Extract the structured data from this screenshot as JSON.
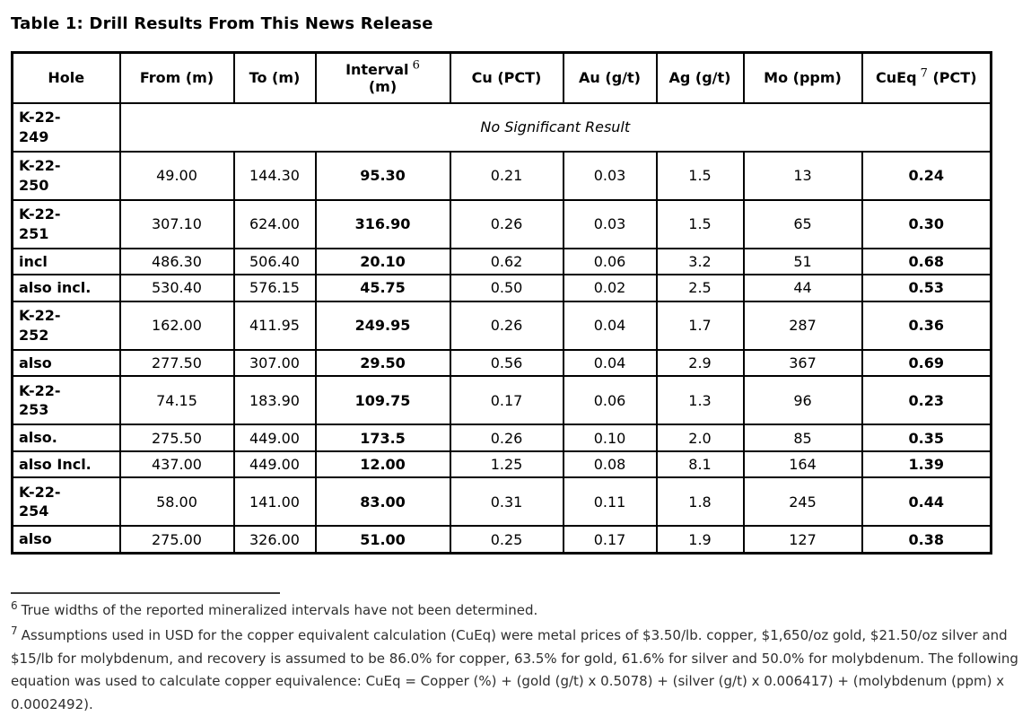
{
  "title": "Table 1: Drill Results From This News Release",
  "table": {
    "headers": [
      {
        "key": "hole",
        "label": "Hole"
      },
      {
        "key": "from",
        "label": "From (m)"
      },
      {
        "key": "to",
        "label": "To (m)"
      },
      {
        "key": "interval",
        "label": "Interval",
        "sup": "6",
        "line2": "(m)"
      },
      {
        "key": "cu",
        "label": "Cu (PCT)"
      },
      {
        "key": "au",
        "label": "Au (g/t)"
      },
      {
        "key": "ag",
        "label": "Ag (g/t)"
      },
      {
        "key": "mo",
        "label": "Mo (ppm)"
      },
      {
        "key": "cueq",
        "label": "CuEq",
        "sup": "7",
        "suffix": " (PCT)"
      }
    ],
    "rows": [
      {
        "hole": "K-22-\n249",
        "span_note": "No Significant Result",
        "size": "tall"
      },
      {
        "hole": "K-22-\n250",
        "from": "49.00",
        "to": "144.30",
        "interval": "95.30",
        "cu": "0.21",
        "au": "0.03",
        "ag": "1.5",
        "mo": "13",
        "cueq": "0.24",
        "size": "tall"
      },
      {
        "hole": "K-22-\n251",
        "from": "307.10",
        "to": "624.00",
        "interval": "316.90",
        "cu": "0.26",
        "au": "0.03",
        "ag": "1.5",
        "mo": "65",
        "cueq": "0.30",
        "size": "tall"
      },
      {
        "hole": "incl",
        "from": "486.30",
        "to": "506.40",
        "interval": "20.10",
        "cu": "0.62",
        "au": "0.06",
        "ag": "3.2",
        "mo": "51",
        "cueq": "0.68",
        "size": "short"
      },
      {
        "hole": "also incl.",
        "from": "530.40",
        "to": "576.15",
        "interval": "45.75",
        "cu": "0.50",
        "au": "0.02",
        "ag": "2.5",
        "mo": "44",
        "cueq": "0.53",
        "size": "short"
      },
      {
        "hole": "K-22-\n252",
        "from": "162.00",
        "to": "411.95",
        "interval": "249.95",
        "cu": "0.26",
        "au": "0.04",
        "ag": "1.7",
        "mo": "287",
        "cueq": "0.36",
        "size": "tall"
      },
      {
        "hole": "also",
        "from": "277.50",
        "to": "307.00",
        "interval": "29.50",
        "cu": "0.56",
        "au": "0.04",
        "ag": "2.9",
        "mo": "367",
        "cueq": "0.69",
        "size": "short"
      },
      {
        "hole": "K-22-\n253",
        "from": "74.15",
        "to": "183.90",
        "interval": "109.75",
        "cu": "0.17",
        "au": "0.06",
        "ag": "1.3",
        "mo": "96",
        "cueq": "0.23",
        "size": "tall"
      },
      {
        "hole": "also.",
        "from": "275.50",
        "to": "449.00",
        "interval": "173.5",
        "cu": "0.26",
        "au": "0.10",
        "ag": "2.0",
        "mo": "85",
        "cueq": "0.35",
        "size": "short"
      },
      {
        "hole": "also Incl.",
        "from": "437.00",
        "to": "449.00",
        "interval": "12.00",
        "cu": "1.25",
        "au": "0.08",
        "ag": "8.1",
        "mo": "164",
        "cueq": "1.39",
        "size": "short"
      },
      {
        "hole": "K-22-\n254",
        "from": "58.00",
        "to": "141.00",
        "interval": "83.00",
        "cu": "0.31",
        "au": "0.11",
        "ag": "1.8",
        "mo": "245",
        "cueq": "0.44",
        "size": "tall"
      },
      {
        "hole": "also",
        "from": "275.00",
        "to": "326.00",
        "interval": "51.00",
        "cu": "0.25",
        "au": "0.17",
        "ag": "1.9",
        "mo": "127",
        "cueq": "0.38",
        "size": "short"
      }
    ]
  },
  "footnotes": [
    {
      "marker": "6",
      "text": "True widths of the reported mineralized intervals have not been determined."
    },
    {
      "marker": "7",
      "text": "Assumptions used in USD for the copper equivalent calculation (CuEq) were metal prices of $3.50/lb. copper, $1,650/oz gold, $21.50/oz silver and $15/lb for molybdenum, and recovery is assumed to be 86.0% for copper, 63.5% for gold, 61.6% for silver and 50.0% for molybdenum. The following equation was used to calculate copper equivalence: CuEq = Copper (%) + (gold (g/t) x 0.5078) + (silver (g/t) x 0.006417) + (molybdenum (ppm) x 0.0002492)."
    }
  ]
}
